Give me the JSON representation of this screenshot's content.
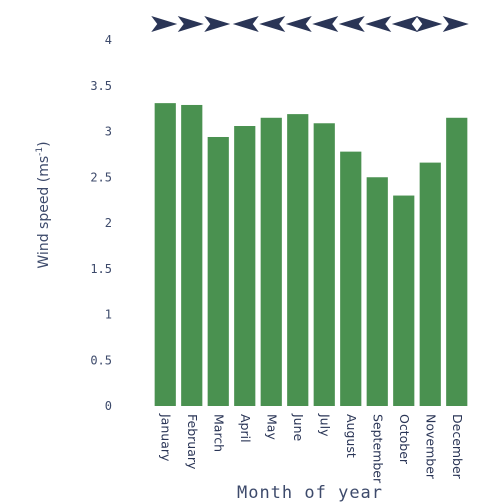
{
  "chart_data": {
    "type": "bar",
    "categories": [
      "January",
      "February",
      "March",
      "April",
      "May",
      "June",
      "July",
      "August",
      "September",
      "October",
      "November",
      "December"
    ],
    "values": [
      3.31,
      3.29,
      2.94,
      3.06,
      3.15,
      3.19,
      3.09,
      2.78,
      2.5,
      2.3,
      2.66,
      3.15
    ],
    "yticks": [
      "0",
      "0.5",
      "1",
      "1.5",
      "2",
      "2.5",
      "3",
      "3.5",
      "4"
    ],
    "ylim": [
      0,
      4
    ],
    "ylabel_main": "Wind speed (ms",
    "ylabel_sup": "-1",
    "ylabel_close": ")",
    "xlabel": "Month of year",
    "bar_color": "#4a9150",
    "arrow_color": "#2a3556",
    "wind_direction_arrows": [
      {
        "month": "January",
        "direction": "right"
      },
      {
        "month": "February",
        "direction": "right"
      },
      {
        "month": "March",
        "direction": "right"
      },
      {
        "month": "April",
        "direction": "left"
      },
      {
        "month": "May",
        "direction": "left"
      },
      {
        "month": "June",
        "direction": "left"
      },
      {
        "month": "July",
        "direction": "left"
      },
      {
        "month": "August",
        "direction": "left"
      },
      {
        "month": "September",
        "direction": "left"
      },
      {
        "month": "October",
        "direction": "left"
      },
      {
        "month": "November",
        "direction": "right"
      },
      {
        "month": "December",
        "direction": "right"
      }
    ]
  }
}
